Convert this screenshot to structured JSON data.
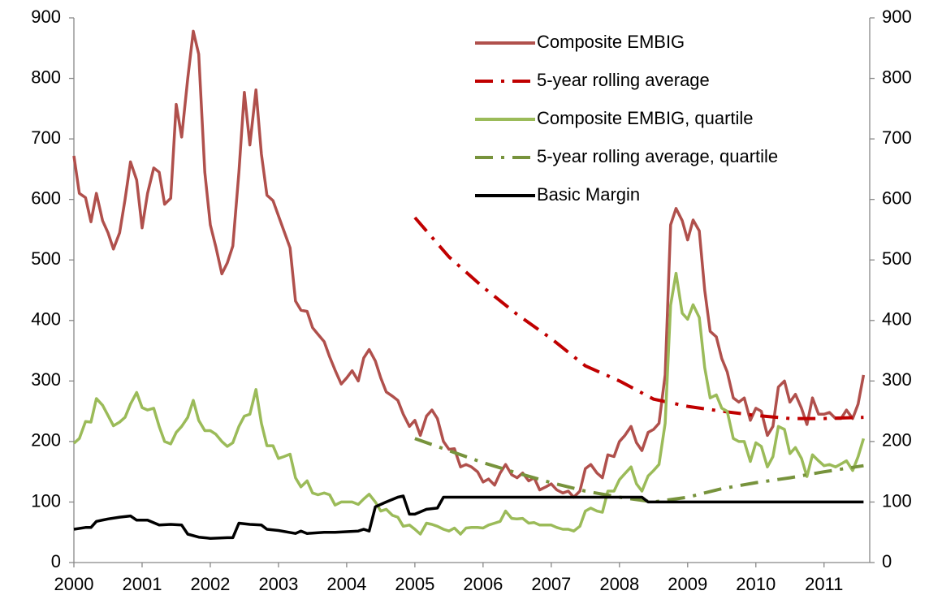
{
  "chart_data": {
    "type": "line",
    "xlim": [
      2000,
      2011.67
    ],
    "xticks": [
      2000,
      2001,
      2002,
      2003,
      2004,
      2005,
      2006,
      2007,
      2008,
      2009,
      2010,
      2011
    ],
    "ylim": [
      0,
      900
    ],
    "yticks": [
      0,
      100,
      200,
      300,
      400,
      500,
      600,
      700,
      800,
      900
    ],
    "y2lim": [
      0,
      900
    ],
    "y2ticks": [
      0,
      100,
      200,
      300,
      400,
      500,
      600,
      700,
      800,
      900
    ],
    "grid": false,
    "legend": "upper right",
    "series": [
      {
        "name": "Composite EMBIG",
        "color": "#b0504c",
        "style": "solid",
        "x": [
          2000.0,
          2000.08,
          2000.17,
          2000.25,
          2000.33,
          2000.42,
          2000.5,
          2000.58,
          2000.67,
          2000.75,
          2000.83,
          2000.92,
          2001.0,
          2001.08,
          2001.17,
          2001.25,
          2001.33,
          2001.42,
          2001.5,
          2001.58,
          2001.67,
          2001.75,
          2001.83,
          2001.92,
          2002.0,
          2002.08,
          2002.17,
          2002.25,
          2002.33,
          2002.42,
          2002.5,
          2002.58,
          2002.67,
          2002.75,
          2002.83,
          2002.92,
          2003.0,
          2003.08,
          2003.17,
          2003.25,
          2003.33,
          2003.42,
          2003.5,
          2003.58,
          2003.67,
          2003.75,
          2003.83,
          2003.92,
          2004.0,
          2004.08,
          2004.17,
          2004.25,
          2004.33,
          2004.42,
          2004.5,
          2004.58,
          2004.67,
          2004.75,
          2004.83,
          2004.92,
          2005.0,
          2005.08,
          2005.17,
          2005.25,
          2005.33,
          2005.42,
          2005.5,
          2005.58,
          2005.67,
          2005.75,
          2005.83,
          2005.92,
          2006.0,
          2006.08,
          2006.17,
          2006.25,
          2006.33,
          2006.42,
          2006.5,
          2006.58,
          2006.67,
          2006.75,
          2006.83,
          2006.92,
          2007.0,
          2007.08,
          2007.17,
          2007.25,
          2007.33,
          2007.42,
          2007.5,
          2007.58,
          2007.67,
          2007.75,
          2007.83,
          2007.92,
          2008.0,
          2008.08,
          2008.17,
          2008.25,
          2008.33,
          2008.42,
          2008.5,
          2008.58,
          2008.67,
          2008.75,
          2008.83,
          2008.92,
          2009.0,
          2009.08,
          2009.17,
          2009.25,
          2009.33,
          2009.42,
          2009.5,
          2009.58,
          2009.67,
          2009.75,
          2009.83,
          2009.92,
          2010.0,
          2010.08,
          2010.17,
          2010.25,
          2010.33,
          2010.42,
          2010.5,
          2010.58,
          2010.67,
          2010.75,
          2010.83,
          2010.92,
          2011.0,
          2011.08,
          2011.17,
          2011.25,
          2011.33,
          2011.42,
          2011.5,
          2011.58
        ],
        "values": [
          672,
          610,
          603,
          563,
          610,
          565,
          545,
          518,
          545,
          600,
          662,
          632,
          553,
          610,
          652,
          645,
          592,
          602,
          757,
          703,
          800,
          878,
          840,
          645,
          558,
          522,
          477,
          495,
          523,
          645,
          777,
          690,
          781,
          675,
          607,
          598,
          573,
          548,
          520,
          432,
          417,
          415,
          388,
          377,
          365,
          340,
          318,
          295,
          305,
          317,
          300,
          338,
          352,
          333,
          305,
          282,
          275,
          268,
          245,
          225,
          235,
          210,
          242,
          252,
          238,
          200,
          187,
          188,
          158,
          162,
          158,
          150,
          133,
          138,
          128,
          148,
          162,
          145,
          140,
          148,
          135,
          140,
          120,
          125,
          130,
          120,
          115,
          118,
          108,
          118,
          155,
          162,
          148,
          140,
          178,
          175,
          200,
          210,
          225,
          198,
          185,
          215,
          220,
          230,
          310,
          558,
          585,
          565,
          533,
          566,
          548,
          450,
          382,
          373,
          337,
          315,
          272,
          265,
          272,
          235,
          255,
          250,
          210,
          225,
          290,
          300,
          265,
          278,
          255,
          228,
          272,
          245,
          245,
          248,
          238,
          238,
          252,
          238,
          262,
          310
        ]
      },
      {
        "name": "5-year rolling average",
        "color": "#c00000",
        "style": "dash-dot",
        "x": [
          2005.0,
          2005.5,
          2006.0,
          2006.5,
          2007.0,
          2007.5,
          2008.0,
          2008.5,
          2009.0,
          2009.5,
          2010.0,
          2010.5,
          2011.0,
          2011.58
        ],
        "values": [
          570,
          505,
          455,
          410,
          370,
          325,
          300,
          270,
          258,
          250,
          243,
          238,
          238,
          240
        ]
      },
      {
        "name": "Composite EMBIG, quartile",
        "color": "#9bbb59",
        "style": "solid",
        "x": [
          2000.0,
          2000.08,
          2000.17,
          2000.25,
          2000.33,
          2000.42,
          2000.5,
          2000.58,
          2000.67,
          2000.75,
          2000.83,
          2000.92,
          2001.0,
          2001.08,
          2001.17,
          2001.25,
          2001.33,
          2001.42,
          2001.5,
          2001.58,
          2001.67,
          2001.75,
          2001.83,
          2001.92,
          2002.0,
          2002.08,
          2002.17,
          2002.25,
          2002.33,
          2002.42,
          2002.5,
          2002.58,
          2002.67,
          2002.75,
          2002.83,
          2002.92,
          2003.0,
          2003.08,
          2003.17,
          2003.25,
          2003.33,
          2003.42,
          2003.5,
          2003.58,
          2003.67,
          2003.75,
          2003.83,
          2003.92,
          2004.0,
          2004.08,
          2004.17,
          2004.25,
          2004.33,
          2004.42,
          2004.5,
          2004.58,
          2004.67,
          2004.75,
          2004.83,
          2004.92,
          2005.0,
          2005.08,
          2005.17,
          2005.25,
          2005.33,
          2005.42,
          2005.5,
          2005.58,
          2005.67,
          2005.75,
          2005.83,
          2005.92,
          2006.0,
          2006.08,
          2006.17,
          2006.25,
          2006.33,
          2006.42,
          2006.5,
          2006.58,
          2006.67,
          2006.75,
          2006.83,
          2006.92,
          2007.0,
          2007.08,
          2007.17,
          2007.25,
          2007.33,
          2007.42,
          2007.5,
          2007.58,
          2007.67,
          2007.75,
          2007.83,
          2007.92,
          2008.0,
          2008.08,
          2008.17,
          2008.25,
          2008.33,
          2008.42,
          2008.5,
          2008.58,
          2008.67,
          2008.75,
          2008.83,
          2008.92,
          2009.0,
          2009.08,
          2009.17,
          2009.25,
          2009.33,
          2009.42,
          2009.5,
          2009.58,
          2009.67,
          2009.75,
          2009.83,
          2009.92,
          2010.0,
          2010.08,
          2010.17,
          2010.25,
          2010.33,
          2010.42,
          2010.5,
          2010.58,
          2010.67,
          2010.75,
          2010.83,
          2010.92,
          2011.0,
          2011.08,
          2011.17,
          2011.25,
          2011.33,
          2011.42,
          2011.5,
          2011.58
        ],
        "values": [
          197,
          205,
          233,
          232,
          271,
          260,
          243,
          226,
          232,
          240,
          262,
          281,
          256,
          252,
          255,
          225,
          200,
          196,
          215,
          225,
          240,
          268,
          235,
          218,
          218,
          212,
          200,
          192,
          198,
          225,
          242,
          245,
          286,
          230,
          193,
          193,
          172,
          175,
          179,
          140,
          125,
          135,
          115,
          112,
          115,
          112,
          95,
          100,
          100,
          100,
          96,
          105,
          113,
          100,
          85,
          88,
          78,
          75,
          60,
          62,
          55,
          47,
          65,
          63,
          60,
          55,
          52,
          57,
          47,
          57,
          58,
          58,
          57,
          62,
          65,
          68,
          85,
          73,
          72,
          73,
          65,
          66,
          62,
          62,
          62,
          58,
          55,
          55,
          52,
          60,
          85,
          90,
          85,
          83,
          118,
          118,
          137,
          147,
          158,
          130,
          118,
          143,
          152,
          162,
          230,
          425,
          478,
          412,
          402,
          426,
          405,
          322,
          272,
          277,
          255,
          250,
          205,
          200,
          200,
          167,
          198,
          192,
          158,
          175,
          225,
          220,
          180,
          190,
          172,
          142,
          178,
          168,
          160,
          162,
          158,
          163,
          168,
          152,
          175,
          205
        ]
      },
      {
        "name": "5-year rolling average, quartile",
        "color": "#77933c",
        "style": "dash-dot",
        "x": [
          2005.0,
          2005.5,
          2006.0,
          2006.5,
          2007.0,
          2007.5,
          2008.0,
          2008.5,
          2009.0,
          2009.5,
          2010.0,
          2010.5,
          2011.0,
          2011.58
        ],
        "values": [
          205,
          185,
          165,
          148,
          132,
          118,
          108,
          100,
          108,
          122,
          132,
          140,
          150,
          160
        ]
      },
      {
        "name": "Basic Margin",
        "color": "#000000",
        "style": "solid",
        "x": [
          2000.0,
          2000.17,
          2000.25,
          2000.33,
          2000.5,
          2000.67,
          2000.83,
          2000.92,
          2001.08,
          2001.25,
          2001.42,
          2001.58,
          2001.67,
          2001.83,
          2002.0,
          2002.25,
          2002.33,
          2002.42,
          2002.58,
          2002.75,
          2002.83,
          2003.0,
          2003.25,
          2003.33,
          2003.42,
          2003.67,
          2003.83,
          2004.0,
          2004.17,
          2004.25,
          2004.33,
          2004.42,
          2004.58,
          2004.75,
          2004.83,
          2004.92,
          2005.0,
          2005.17,
          2005.33,
          2005.42,
          2008.33,
          2008.42,
          2011.58
        ],
        "values": [
          55,
          58,
          58,
          68,
          72,
          75,
          77,
          70,
          70,
          62,
          63,
          62,
          47,
          42,
          40,
          41,
          41,
          65,
          63,
          62,
          55,
          53,
          48,
          52,
          48,
          50,
          50,
          51,
          52,
          55,
          52,
          92,
          100,
          108,
          110,
          80,
          80,
          88,
          90,
          108,
          108,
          100,
          100
        ]
      }
    ]
  }
}
